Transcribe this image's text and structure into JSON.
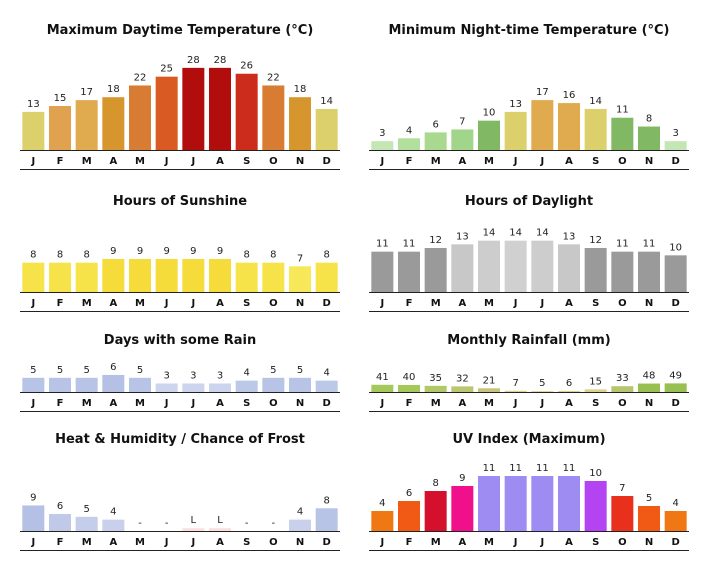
{
  "months": [
    "J",
    "F",
    "M",
    "A",
    "M",
    "J",
    "J",
    "A",
    "S",
    "O",
    "N",
    "D"
  ],
  "chart_data": [
    {
      "type": "bar",
      "title": "Maximum Daytime Temperature (°C)",
      "categories": [
        "J",
        "F",
        "M",
        "A",
        "M",
        "J",
        "J",
        "A",
        "S",
        "O",
        "N",
        "D"
      ],
      "values": [
        13,
        15,
        17,
        18,
        22,
        25,
        28,
        28,
        26,
        22,
        18,
        14
      ],
      "labels": [
        "13",
        "15",
        "17",
        "18",
        "22",
        "25",
        "28",
        "28",
        "26",
        "22",
        "18",
        "14"
      ],
      "ylim": [
        0,
        30
      ],
      "colors": [
        "#dcd06c",
        "#e0a24e",
        "#e0aa4e",
        "#d7952e",
        "#d97c33",
        "#d95a23",
        "#b20d0d",
        "#b20d0d",
        "#cc2c1b",
        "#d97c33",
        "#d7952e",
        "#dcd06c"
      ]
    },
    {
      "type": "bar",
      "title": "Minimum Night-time Temperature (°C)",
      "categories": [
        "J",
        "F",
        "M",
        "A",
        "M",
        "J",
        "J",
        "A",
        "S",
        "O",
        "N",
        "D"
      ],
      "values": [
        3,
        4,
        6,
        7,
        10,
        13,
        17,
        16,
        14,
        11,
        8,
        3
      ],
      "labels": [
        "3",
        "4",
        "6",
        "7",
        "10",
        "13",
        "17",
        "16",
        "14",
        "11",
        "8",
        "3"
      ],
      "ylim": [
        0,
        30
      ],
      "colors": [
        "#c4e6b4",
        "#b2df9e",
        "#a8d98f",
        "#a0d58a",
        "#80b863",
        "#dcd06c",
        "#e0aa4e",
        "#e0aa4e",
        "#dcd06c",
        "#80b863",
        "#80b863",
        "#c4e6b4"
      ]
    },
    {
      "type": "bar",
      "title": "Hours of Sunshine",
      "categories": [
        "J",
        "F",
        "M",
        "A",
        "M",
        "J",
        "J",
        "A",
        "S",
        "O",
        "N",
        "D"
      ],
      "values": [
        8,
        8,
        8,
        9,
        9,
        9,
        9,
        9,
        8,
        8,
        7,
        8
      ],
      "labels": [
        "8",
        "8",
        "8",
        "9",
        "9",
        "9",
        "9",
        "9",
        "8",
        "8",
        "7",
        "8"
      ],
      "ylim": [
        0,
        24
      ],
      "colors": [
        "#f6e34a",
        "#f6e34a",
        "#f6e34a",
        "#f5dc3a",
        "#f5dc3a",
        "#f5dc3a",
        "#f5dc3a",
        "#f5dc3a",
        "#f6e34a",
        "#f6e34a",
        "#f7e85a",
        "#f6e34a"
      ]
    },
    {
      "type": "bar",
      "title": "Hours of Daylight",
      "categories": [
        "J",
        "F",
        "M",
        "A",
        "M",
        "J",
        "J",
        "A",
        "S",
        "O",
        "N",
        "D"
      ],
      "values": [
        11,
        11,
        12,
        13,
        14,
        14,
        14,
        13,
        12,
        11,
        11,
        10
      ],
      "labels": [
        "11",
        "11",
        "12",
        "13",
        "14",
        "14",
        "14",
        "13",
        "12",
        "11",
        "11",
        "10"
      ],
      "ylim": [
        0,
        24
      ],
      "colors": [
        "#9a9a9a",
        "#9a9a9a",
        "#9a9a9a",
        "#c8c8c8",
        "#cdcdcd",
        "#d0d0d0",
        "#cdcdcd",
        "#c8c8c8",
        "#9a9a9a",
        "#9a9a9a",
        "#9a9a9a",
        "#9a9a9a"
      ]
    },
    {
      "type": "bar",
      "title": "Days with some Rain",
      "categories": [
        "J",
        "F",
        "M",
        "A",
        "M",
        "J",
        "J",
        "A",
        "S",
        "O",
        "N",
        "D"
      ],
      "values": [
        5,
        5,
        5,
        6,
        5,
        3,
        3,
        3,
        4,
        5,
        5,
        4
      ],
      "labels": [
        "5",
        "5",
        "5",
        "6",
        "5",
        "3",
        "3",
        "3",
        "4",
        "5",
        "5",
        "4"
      ],
      "ylim": [
        0,
        31
      ],
      "colors": [
        "#b8c4e6",
        "#b8c4e6",
        "#b8c4e6",
        "#b4c0e4",
        "#b8c4e6",
        "#ccd4ee",
        "#ccd4ee",
        "#ccd4ee",
        "#bcc8e8",
        "#b8c4e6",
        "#b8c4e6",
        "#bcc8e8"
      ]
    },
    {
      "type": "bar",
      "title": "Monthly Rainfall (mm)",
      "categories": [
        "J",
        "F",
        "M",
        "A",
        "M",
        "J",
        "J",
        "A",
        "S",
        "O",
        "N",
        "D"
      ],
      "values": [
        41,
        40,
        35,
        32,
        21,
        7,
        5,
        6,
        15,
        33,
        48,
        49
      ],
      "labels": [
        "41",
        "40",
        "35",
        "32",
        "21",
        "7",
        "5",
        "6",
        "15",
        "33",
        "48",
        "49"
      ],
      "ylim": [
        0,
        500
      ],
      "colors": [
        "#a4c85a",
        "#a4c85a",
        "#b0c868",
        "#bcc670",
        "#c8c27c",
        "#dcd08a",
        "#dcd08a",
        "#dcd08a",
        "#dcd08a",
        "#b8c46e",
        "#98c050",
        "#98c050"
      ]
    },
    {
      "type": "bar",
      "title": "Heat & Humidity / Chance of Frost",
      "categories": [
        "J",
        "F",
        "M",
        "A",
        "M",
        "J",
        "J",
        "A",
        "S",
        "O",
        "N",
        "D"
      ],
      "values": [
        9,
        6,
        5,
        4,
        0,
        0,
        1,
        1,
        0,
        0,
        4,
        8
      ],
      "labels": [
        "9",
        "6",
        "5",
        "4",
        "-",
        "-",
        "L",
        "L",
        "-",
        "-",
        "4",
        "8"
      ],
      "ylim": [
        0,
        31
      ],
      "colors": [
        "#b4c0e4",
        "#c0cae8",
        "#c4ceea",
        "#c8d0ec",
        "#ffffff",
        "#ffffff",
        "#fbe0e0",
        "#fbe0e0",
        "#ffffff",
        "#ffffff",
        "#c8d0ec",
        "#b8c4e6"
      ]
    },
    {
      "type": "bar",
      "title": "UV Index (Maximum)",
      "categories": [
        "J",
        "F",
        "M",
        "A",
        "M",
        "J",
        "J",
        "A",
        "S",
        "O",
        "N",
        "D"
      ],
      "values": [
        4,
        6,
        8,
        9,
        11,
        11,
        11,
        11,
        10,
        7,
        5,
        4
      ],
      "labels": [
        "4",
        "6",
        "8",
        "9",
        "11",
        "11",
        "11",
        "11",
        "10",
        "7",
        "5",
        "4"
      ],
      "ylim": [
        0,
        11
      ],
      "colors": [
        "#f07814",
        "#f05a14",
        "#d4102c",
        "#f0108c",
        "#9e8cf2",
        "#9e8cf2",
        "#9e8cf2",
        "#9e8cf2",
        "#b444f2",
        "#e8301c",
        "#f05a14",
        "#f07814"
      ]
    }
  ]
}
